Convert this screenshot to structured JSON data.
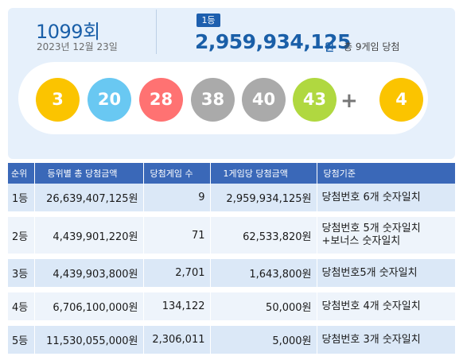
{
  "draw": {
    "number": "1099회",
    "date": "2023년 12월 23일",
    "rank_badge": "1등",
    "first_prize": "2,959,934,125",
    "first_prize_unit": "원",
    "winners_text": "총 9게임 당첨"
  },
  "balls": [
    {
      "value": "3",
      "color": "#fbc400"
    },
    {
      "value": "20",
      "color": "#69c8f2"
    },
    {
      "value": "28",
      "color": "#ff7272"
    },
    {
      "value": "38",
      "color": "#aaaaaa"
    },
    {
      "value": "40",
      "color": "#aaaaaa"
    },
    {
      "value": "43",
      "color": "#b0d840"
    }
  ],
  "plus": "+",
  "bonus": {
    "value": "4",
    "color": "#fbc400"
  },
  "table": {
    "headers": [
      "순위",
      "등위별 총 당첨금액",
      "당첨게임 수",
      "1게임당 당첨금액",
      "당첨기준"
    ],
    "rows": [
      {
        "rank": "1등",
        "total": "26,639,407,125원",
        "games": "9",
        "per_game": "2,959,934,125원",
        "criteria": "당첨번호 6개 숫자일치",
        "criteria2": ""
      },
      {
        "rank": "2등",
        "total": "4,439,901,220원",
        "games": "71",
        "per_game": "62,533,820원",
        "criteria": "당첨번호 5개 숫자일치",
        "criteria2": "+보너스 숫자일치"
      },
      {
        "rank": "3등",
        "total": "4,439,903,800원",
        "games": "2,701",
        "per_game": "1,643,800원",
        "criteria": "당첨번호5개 숫자일치",
        "criteria2": ""
      },
      {
        "rank": "4등",
        "total": "6,706,100,000원",
        "games": "134,122",
        "per_game": "50,000원",
        "criteria": "당첨번호 4개 숫자일치",
        "criteria2": ""
      },
      {
        "rank": "5등",
        "total": "11,530,055,000원",
        "games": "2,306,011",
        "per_game": "5,000원",
        "criteria": "당첨번호 3개 숫자일치",
        "criteria2": ""
      }
    ]
  }
}
